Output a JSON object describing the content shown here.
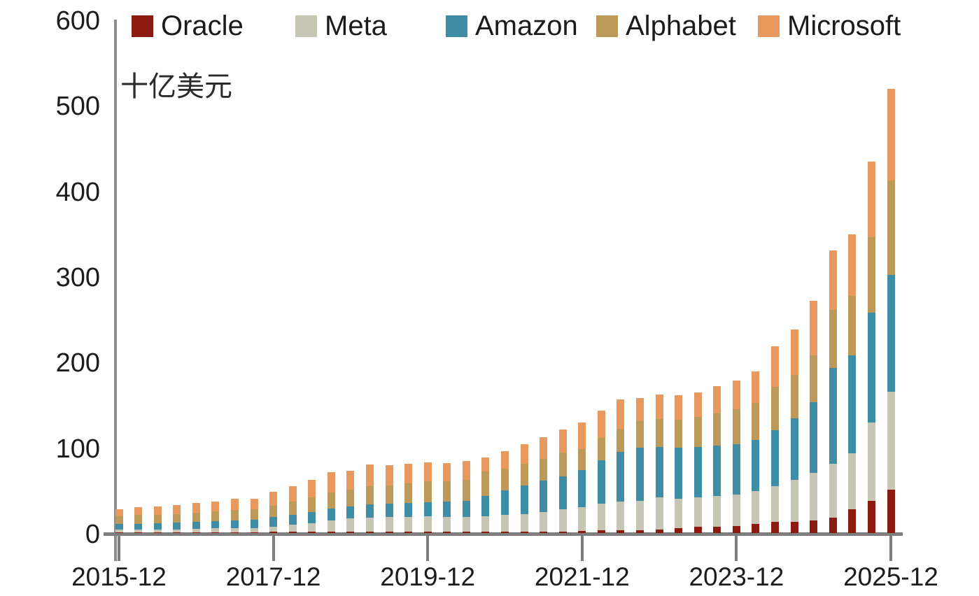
{
  "unit_label": "十亿美元",
  "colors": {
    "axis": "#7e7e7e",
    "text": "#1c1c1c",
    "background": "#ffffff"
  },
  "chart_data": {
    "type": "bar",
    "subtype": "stacked-quarterly-columns",
    "title": "",
    "ylabel": "十亿美元",
    "xlabel": "",
    "ylim": [
      0,
      600
    ],
    "yticks": [
      0,
      100,
      200,
      300,
      400,
      500,
      600
    ],
    "grid": false,
    "legend_position": "top",
    "xtick_labels": [
      "2015-12",
      "2017-12",
      "2019-12",
      "2021-12",
      "2023-12",
      "2025-12"
    ],
    "x": [
      "2015-12",
      "2016-03",
      "2016-06",
      "2016-09",
      "2016-12",
      "2017-03",
      "2017-06",
      "2017-09",
      "2017-12",
      "2018-03",
      "2018-06",
      "2018-09",
      "2018-12",
      "2019-03",
      "2019-06",
      "2019-09",
      "2019-12",
      "2020-03",
      "2020-06",
      "2020-09",
      "2020-12",
      "2021-03",
      "2021-06",
      "2021-09",
      "2021-12",
      "2022-03",
      "2022-06",
      "2022-09",
      "2022-12",
      "2023-03",
      "2023-06",
      "2023-09",
      "2023-12",
      "2024-03",
      "2024-06",
      "2024-09",
      "2024-12",
      "2025-03",
      "2025-06",
      "2025-09",
      "2025-12"
    ],
    "series": [
      {
        "name": "Oracle",
        "color": "#8b1a10",
        "values": [
          1,
          1,
          1,
          1,
          1,
          1,
          1,
          1,
          1.5,
          1.5,
          1.5,
          1.5,
          2,
          2,
          2,
          1.5,
          1.5,
          1.5,
          1.5,
          1.5,
          1.5,
          1.5,
          2,
          2,
          2.5,
          3,
          3,
          3.5,
          4,
          5.5,
          7,
          7,
          8.5,
          11,
          13,
          13,
          15,
          18,
          28,
          38,
          51
        ]
      },
      {
        "name": "Meta",
        "color": "#c7c6b5",
        "values": [
          3,
          3,
          3.5,
          3.5,
          4,
          4.5,
          5,
          5,
          6,
          8,
          10,
          13,
          15,
          16,
          17,
          17.5,
          18,
          17.5,
          17,
          18,
          19.5,
          21,
          22.5,
          26,
          27.5,
          31.5,
          34,
          34.5,
          38,
          35,
          35,
          36.5,
          36.5,
          38,
          42,
          49.5,
          55.5,
          63,
          65,
          91.5,
          114
        ]
      },
      {
        "name": "Amazon",
        "color": "#3f8ca5",
        "values": [
          6.5,
          7,
          7,
          7.5,
          8,
          8.5,
          9,
          9.5,
          11,
          12,
          13,
          14,
          14.5,
          15.5,
          15.5,
          16,
          16.5,
          17.5,
          19.5,
          24,
          28.5,
          33,
          36.5,
          38.5,
          44,
          50.5,
          58,
          61.5,
          58.5,
          59,
          58.5,
          58.5,
          58.5,
          60,
          65.5,
          71.5,
          82,
          112,
          114.5,
          128,
          137
        ]
      },
      {
        "name": "Alphabet",
        "color": "#bd9a5a",
        "values": [
          9.5,
          10,
          10,
          10.5,
          10.5,
          11,
          12,
          12,
          13.5,
          15,
          17,
          19,
          19,
          21.5,
          21.5,
          23,
          24.5,
          24,
          24,
          28.5,
          25.5,
          25.5,
          25.5,
          27.5,
          24.5,
          26.5,
          26.5,
          31,
          32.5,
          33,
          35,
          38,
          41.5,
          43,
          50,
          51,
          55,
          67.5,
          69.5,
          88,
          110
        ]
      },
      {
        "name": "Microsoft",
        "color": "#e89a5e",
        "values": [
          8,
          9,
          9.5,
          10.5,
          11.5,
          12,
          13,
          13,
          16,
          18.5,
          20.5,
          23.5,
          22.5,
          25,
          23,
          23,
          22.5,
          21.5,
          22,
          16,
          21,
          23,
          25.5,
          27.5,
          31,
          32,
          34.5,
          27.5,
          29,
          28.5,
          28.5,
          32,
          33,
          37,
          47.5,
          53,
          63.5,
          69.5,
          72,
          88.5,
          107
        ]
      }
    ]
  }
}
